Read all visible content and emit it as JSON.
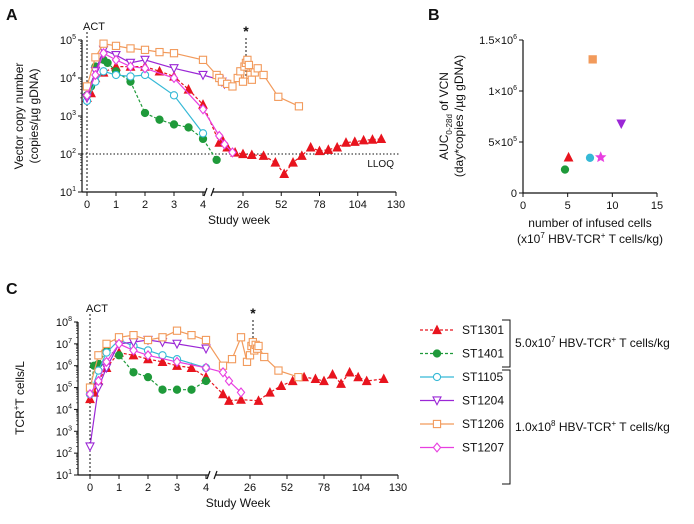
{
  "panels": {
    "A": "A",
    "B": "B",
    "C": "C"
  },
  "colors": {
    "ST1301": "#e8141e",
    "ST1401": "#1f9a3a",
    "ST1105": "#36b9d6",
    "ST1204": "#9b27d6",
    "ST1206": "#f29a5b",
    "ST1207": "#e83fe0",
    "axis": "#111111"
  },
  "chart_data": [
    {
      "panel": "A",
      "type": "line",
      "ylabel_line1": "Vector copy number",
      "ylabel_line2": "(copies/µg gDNA)",
      "xlabel": "Study week",
      "yscale": "log",
      "ylim": [
        10,
        100000
      ],
      "yticks": [
        {
          "base": "10",
          "exp": "1"
        },
        {
          "base": "10",
          "exp": "2"
        },
        {
          "base": "10",
          "exp": "3"
        },
        {
          "base": "10",
          "exp": "4"
        },
        {
          "base": "10",
          "exp": "5"
        }
      ],
      "xticks": [
        "0",
        "1",
        "2",
        "3",
        "4",
        "26",
        "52",
        "78",
        "104",
        "130"
      ],
      "x_break_note": "axis broken between week 4 and week 26",
      "annotations": {
        "act": "ACT",
        "star": "*",
        "lloq": "LLOQ",
        "lloq_value": 100
      },
      "series": [
        {
          "name": "ST1301",
          "style": "dashed",
          "marker": "triangle",
          "x": [
            0,
            0.14,
            0.29,
            0.57,
            1,
            1.5,
            2,
            2.5,
            3,
            3.5,
            4,
            8,
            10,
            14,
            20,
            26,
            32,
            40,
            48,
            54,
            60,
            66,
            72,
            78,
            84,
            90,
            96,
            102,
            108,
            114,
            120
          ],
          "y": [
            3000,
            4000,
            10000,
            14000,
            20000,
            20000,
            20000,
            15000,
            11000,
            5000,
            2000,
            200,
            250,
            150,
            110,
            100,
            95,
            90,
            60,
            30,
            60,
            90,
            150,
            120,
            130,
            150,
            200,
            210,
            230,
            240,
            250
          ]
        },
        {
          "name": "ST1401",
          "style": "dashed",
          "marker": "circle",
          "x": [
            0,
            0.14,
            0.29,
            0.57,
            0.71,
            1,
            1.5,
            2,
            2.5,
            3,
            3.5,
            4,
            6
          ],
          "y": [
            3500,
            6000,
            20000,
            30000,
            25000,
            15000,
            8000,
            1200,
            800,
            600,
            500,
            250,
            70
          ]
        },
        {
          "name": "ST1105",
          "style": "solid",
          "marker": "open_circle",
          "x": [
            0,
            0.29,
            0.57,
            1,
            1.5,
            2,
            3,
            4
          ],
          "y": [
            2500,
            8000,
            15000,
            12000,
            11000,
            12000,
            3500,
            350
          ]
        },
        {
          "name": "ST1204",
          "style": "solid",
          "marker": "open_triangle_down",
          "x": [
            0,
            0.29,
            0.57,
            1,
            1.5,
            2,
            3,
            4,
            8,
            10,
            12
          ],
          "y": [
            3000,
            15000,
            55000,
            40000,
            25000,
            30000,
            18000,
            12000,
            9000,
            8000,
            7000
          ]
        },
        {
          "name": "ST1206",
          "style": "solid",
          "marker": "open_square",
          "x": [
            0,
            0.29,
            0.57,
            1,
            1.5,
            2,
            2.5,
            3,
            4,
            6,
            8,
            10,
            14,
            18,
            22,
            24,
            26,
            27,
            28,
            29,
            30,
            31,
            32,
            34,
            36,
            40,
            50,
            64
          ],
          "y": [
            6000,
            35000,
            80000,
            70000,
            60000,
            55000,
            48000,
            45000,
            30000,
            12000,
            10000,
            8000,
            7000,
            6000,
            10000,
            15000,
            8000,
            20000,
            25000,
            30000,
            22000,
            12000,
            9000,
            14000,
            18000,
            12000,
            3200,
            1800
          ]
        },
        {
          "name": "ST1207",
          "style": "solid",
          "marker": "open_diamond",
          "x": [
            0,
            0.29,
            0.57,
            1,
            1.5,
            2,
            3,
            4,
            8,
            12,
            18
          ],
          "y": [
            3500,
            12000,
            45000,
            30000,
            20000,
            18000,
            10000,
            1500,
            300,
            180,
            110
          ]
        }
      ]
    },
    {
      "panel": "B",
      "type": "scatter",
      "ylabel_line1": "AUC0-28d of VCN",
      "ylabel_main": "AUC",
      "ylabel_sub": "0-28d",
      "ylabel_rest": " of VCN",
      "ylabel_line2": "(day*copies /µg gDNA)",
      "xlabel_line1": "number of infused cells",
      "xlabel_line2": "(x10^7 HBV-TCR+ T cells/kg)",
      "xlim": [
        0,
        15
      ],
      "ylim": [
        0,
        1500000
      ],
      "xticks": [
        "0",
        "5",
        "10",
        "15"
      ],
      "yticks": [
        {
          "label": "0",
          "value": 0
        },
        {
          "label": "5×10",
          "exp": "5",
          "value": 500000
        },
        {
          "label": "1×10",
          "exp": "6",
          "value": 1000000
        },
        {
          "label": "1.5×10",
          "exp": "6",
          "value": 1500000
        }
      ],
      "points": [
        {
          "name": "ST1301",
          "x": 5.1,
          "y": 350000,
          "marker": "triangle"
        },
        {
          "name": "ST1401",
          "x": 4.7,
          "y": 230000,
          "marker": "circle"
        },
        {
          "name": "ST1105",
          "x": 7.5,
          "y": 345000,
          "marker": "circle"
        },
        {
          "name": "ST1204",
          "x": 11.0,
          "y": 680000,
          "marker": "triangle_down"
        },
        {
          "name": "ST1206",
          "x": 7.8,
          "y": 1310000,
          "marker": "square"
        },
        {
          "name": "ST1207",
          "x": 8.7,
          "y": 350000,
          "marker": "star"
        }
      ]
    },
    {
      "panel": "C",
      "type": "line",
      "ylabel_main": "TCR",
      "ylabel_sup": "+",
      "ylabel_rest": "T cells/L",
      "xlabel": "Study Week",
      "yscale": "log",
      "ylim": [
        10,
        100000000
      ],
      "yticks": [
        {
          "base": "10",
          "exp": "1"
        },
        {
          "base": "10",
          "exp": "2"
        },
        {
          "base": "10",
          "exp": "3"
        },
        {
          "base": "10",
          "exp": "4"
        },
        {
          "base": "10",
          "exp": "5"
        },
        {
          "base": "10",
          "exp": "6"
        },
        {
          "base": "10",
          "exp": "7"
        },
        {
          "base": "10",
          "exp": "8"
        }
      ],
      "xticks": [
        "0",
        "1",
        "2",
        "3",
        "4",
        "26",
        "52",
        "78",
        "104",
        "130"
      ],
      "annotations": {
        "act": "ACT",
        "star": "*"
      },
      "series": [
        {
          "name": "ST1301",
          "style": "dashed",
          "marker": "triangle",
          "x": [
            0,
            0.14,
            0.29,
            0.57,
            1,
            1.5,
            2,
            2.5,
            3,
            3.5,
            4,
            8,
            12,
            20,
            32,
            40,
            48,
            56,
            64,
            72,
            78,
            84,
            90,
            96,
            102,
            108,
            120
          ],
          "y": [
            30000,
            60000,
            200000,
            800000,
            4000000,
            3000000,
            2000000,
            1500000,
            1000000,
            800000,
            300000,
            50000,
            25000,
            28000,
            25000,
            60000,
            120000,
            200000,
            300000,
            250000,
            200000,
            400000,
            150000,
            500000,
            300000,
            200000,
            250000
          ]
        },
        {
          "name": "ST1401",
          "style": "dashed",
          "marker": "circle",
          "x": [
            0,
            0.14,
            0.29,
            0.57,
            1,
            1.5,
            2,
            2.5,
            3,
            3.5,
            4
          ],
          "y": [
            50000,
            1000000,
            1200000,
            5000000,
            3000000,
            500000,
            300000,
            80000,
            80000,
            80000,
            200000
          ]
        },
        {
          "name": "ST1105",
          "style": "solid",
          "marker": "open_circle",
          "x": [
            0,
            0.29,
            0.57,
            1,
            1.5,
            2,
            2.5,
            3,
            4
          ],
          "y": [
            50000,
            600000,
            4000000,
            15000000,
            8000000,
            5000000,
            3000000,
            2000000,
            800000
          ]
        },
        {
          "name": "ST1204",
          "style": "solid",
          "marker": "open_triangle_down",
          "x": [
            0,
            0.29,
            0.57,
            1,
            1.5,
            2,
            2.5,
            3,
            4
          ],
          "y": [
            200,
            100000,
            800000,
            10000000,
            12000000,
            15000000,
            12000000,
            10000000,
            6000000
          ]
        },
        {
          "name": "ST1206",
          "style": "solid",
          "marker": "open_square",
          "x": [
            0,
            0.29,
            0.57,
            1,
            1.5,
            2,
            2.5,
            3,
            3.5,
            4,
            8,
            14,
            20,
            24,
            26,
            27,
            28,
            29,
            30,
            31,
            32,
            36,
            46,
            60
          ],
          "y": [
            100000,
            3000000,
            10000000,
            20000000,
            25000000,
            15000000,
            20000000,
            40000000,
            25000000,
            15000000,
            1000000,
            2000000,
            20000000,
            1500000,
            3000000,
            8000000,
            12000000,
            5000000,
            9000000,
            6000000,
            8000000,
            2500000,
            600000,
            300000
          ]
        },
        {
          "name": "ST1207",
          "style": "solid",
          "marker": "open_diamond",
          "x": [
            0,
            0.29,
            0.57,
            1,
            1.5,
            2,
            3,
            4,
            8,
            12,
            20
          ],
          "y": [
            50000,
            200000,
            1500000,
            10000000,
            5000000,
            3000000,
            1500000,
            800000,
            500000,
            200000,
            60000
          ]
        }
      ]
    }
  ],
  "legend": {
    "items": [
      {
        "name": "ST1301",
        "style": "dashed",
        "marker": "triangle"
      },
      {
        "name": "ST1401",
        "style": "dashed",
        "marker": "circle"
      },
      {
        "name": "ST1105",
        "style": "solid",
        "marker": "open_circle"
      },
      {
        "name": "ST1204",
        "style": "solid",
        "marker": "open_triangle_down"
      },
      {
        "name": "ST1206",
        "style": "solid",
        "marker": "open_square"
      },
      {
        "name": "ST1207",
        "style": "solid",
        "marker": "open_diamond"
      }
    ],
    "dose_low": {
      "pre": "5.0x10",
      "exp": "7",
      "mid": " HBV-TCR",
      "sup": "+",
      "post": " T cells/kg"
    },
    "dose_high": {
      "pre": "1.0x10",
      "exp": "8",
      "mid": " HBV-TCR",
      "sup": "+",
      "post": " T cells/kg"
    }
  }
}
